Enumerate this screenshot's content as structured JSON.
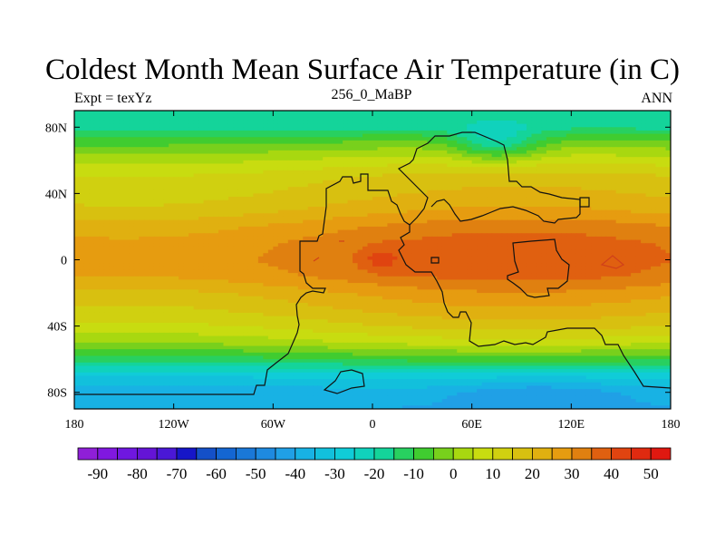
{
  "title": "Coldest Month Mean Surface Air Temperature (in C)",
  "left_label": "Expt = texYz",
  "center_label": "256_0_MaBP",
  "right_label": "ANN",
  "chart_data": {
    "type": "heatmap",
    "title": "Coldest Month Mean Surface Air Temperature (in C)",
    "projection": "cylindrical equidistant",
    "xlim": [
      -180,
      180
    ],
    "ylim": [
      -90,
      90
    ],
    "x_ticks": [
      {
        "value": -180,
        "label": "180"
      },
      {
        "value": -120,
        "label": "120W"
      },
      {
        "value": -60,
        "label": "60W"
      },
      {
        "value": 0,
        "label": "0"
      },
      {
        "value": 60,
        "label": "60E"
      },
      {
        "value": 120,
        "label": "120E"
      },
      {
        "value": 180,
        "label": "180"
      }
    ],
    "y_ticks": [
      {
        "value": 80,
        "label": "80N"
      },
      {
        "value": 40,
        "label": "40N"
      },
      {
        "value": 0,
        "label": "0"
      },
      {
        "value": -40,
        "label": "40S"
      },
      {
        "value": -80,
        "label": "80S"
      }
    ],
    "colorbar": {
      "orientation": "horizontal",
      "levels": [
        -95,
        -90,
        -85,
        -80,
        -75,
        -70,
        -65,
        -60,
        -55,
        -50,
        -45,
        -40,
        -35,
        -30,
        -25,
        -20,
        -15,
        -10,
        -5,
        0,
        5,
        10,
        15,
        20,
        25,
        30,
        35,
        40,
        45,
        50,
        55
      ],
      "labeled_levels": [
        -90,
        -80,
        -70,
        -60,
        -50,
        -40,
        -30,
        -20,
        -10,
        0,
        10,
        20,
        30,
        40,
        50
      ],
      "colors": [
        "#8f1fd8",
        "#8018e0",
        "#6f17e0",
        "#6414d6",
        "#4a18d6",
        "#1616c8",
        "#1450c8",
        "#1466d2",
        "#1a78d8",
        "#1e8ae0",
        "#20a0e6",
        "#18b2e4",
        "#12c0dc",
        "#10ccd8",
        "#10d2bc",
        "#14d49a",
        "#28d060",
        "#40cc30",
        "#78d01c",
        "#a8d810",
        "#c8dc10",
        "#d0d010",
        "#d8c010",
        "#e0b010",
        "#e69c10",
        "#e08010",
        "#e06010",
        "#e04410",
        "#e02a10",
        "#e01810"
      ]
    },
    "field_profile_by_latitude": [
      {
        "lat": 90,
        "value": -18
      },
      {
        "lat": 80,
        "value": -17
      },
      {
        "lat": 70,
        "value": -4
      },
      {
        "lat": 60,
        "value": 6
      },
      {
        "lat": 50,
        "value": 14
      },
      {
        "lat": 40,
        "value": 17
      },
      {
        "lat": 30,
        "value": 21
      },
      {
        "lat": 20,
        "value": 28
      },
      {
        "lat": 10,
        "value": 32
      },
      {
        "lat": 0,
        "value": 33
      },
      {
        "lat": -10,
        "value": 31
      },
      {
        "lat": -20,
        "value": 24
      },
      {
        "lat": -30,
        "value": 19
      },
      {
        "lat": -40,
        "value": 13
      },
      {
        "lat": -50,
        "value": 4
      },
      {
        "lat": -60,
        "value": -10
      },
      {
        "lat": -70,
        "value": -28
      },
      {
        "lat": -80,
        "value": -38
      },
      {
        "lat": -90,
        "value": -40
      }
    ],
    "features": [
      {
        "name": "north-polar-cold-anomaly",
        "lon": 75,
        "lat": 70,
        "value": -20
      },
      {
        "name": "equatorial-hot-spot",
        "lon": 5,
        "lat": 0,
        "value": 40
      },
      {
        "name": "south-polar-minimum",
        "lon": 100,
        "lat": -80,
        "value": -45
      }
    ]
  }
}
